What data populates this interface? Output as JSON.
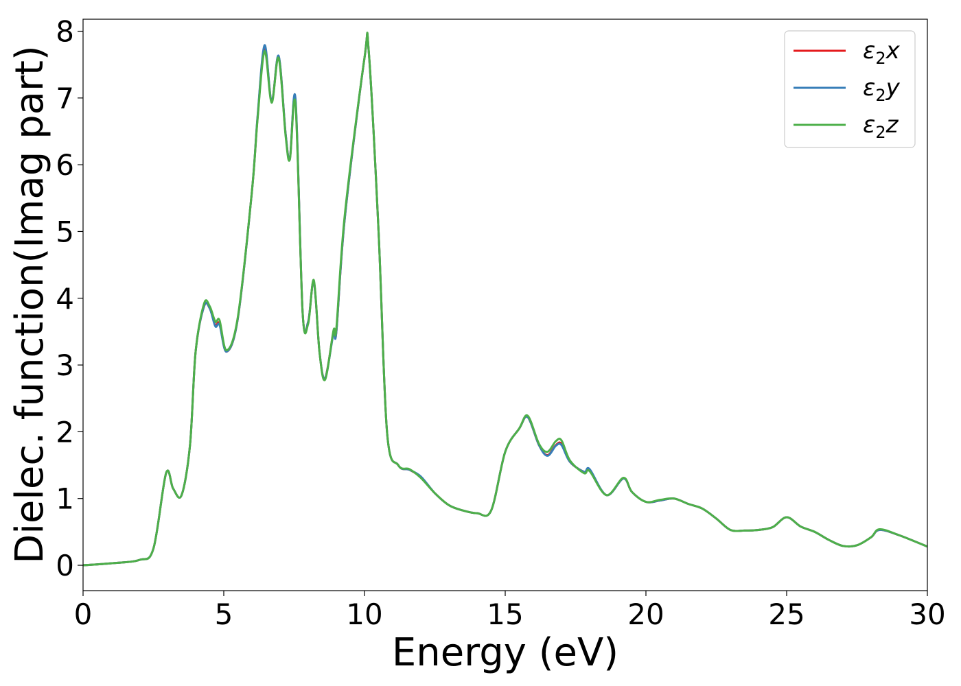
{
  "chart_data": {
    "type": "line",
    "xlabel": "Energy (eV)",
    "ylabel": "Dielec. function(Imag part)",
    "xlim": [
      0,
      30
    ],
    "ylim": [
      -0.38,
      8.18
    ],
    "xticks": [
      0,
      5,
      10,
      15,
      20,
      25,
      30
    ],
    "xtick_labels": [
      "0",
      "5",
      "10",
      "15",
      "20",
      "25",
      "30"
    ],
    "yticks": [
      0,
      1,
      2,
      3,
      4,
      5,
      6,
      7,
      8
    ],
    "ytick_labels": [
      "0",
      "1",
      "2",
      "3",
      "4",
      "5",
      "6",
      "7",
      "8"
    ],
    "grid": false,
    "legend_position": "top-right",
    "series": [
      {
        "name": "ε2x",
        "legend_base": "ε",
        "legend_sub": "2",
        "legend_suffix": "x",
        "color": "#e41a1c",
        "x": [
          0,
          1,
          2,
          2.5,
          2.95,
          3.2,
          3.5,
          3.8,
          4.0,
          4.3,
          4.5,
          4.7,
          4.85,
          5.1,
          5.5,
          6.0,
          6.2,
          6.45,
          6.7,
          6.95,
          7.2,
          7.35,
          7.55,
          7.8,
          8.0,
          8.2,
          8.4,
          8.6,
          8.9,
          9.0,
          9.3,
          10.0,
          10.15,
          10.5,
          10.8,
          11.2,
          11.6,
          12.0,
          12.5,
          13.0,
          13.5,
          14.0,
          14.5,
          15.0,
          15.5,
          15.8,
          16.2,
          16.5,
          16.8,
          17.0,
          17.3,
          17.8,
          18.0,
          18.6,
          19.2,
          19.5,
          20.0,
          20.5,
          21.0,
          21.5,
          22.0,
          22.5,
          23.0,
          23.5,
          24.0,
          24.5,
          25.0,
          25.5,
          26.0,
          26.5,
          27.0,
          27.5,
          28.0,
          28.3,
          29.0,
          30.0
        ],
        "values": [
          0.0,
          0.03,
          0.08,
          0.25,
          1.38,
          1.15,
          1.05,
          1.8,
          3.2,
          3.88,
          3.85,
          3.6,
          3.62,
          3.2,
          3.7,
          5.6,
          6.7,
          7.76,
          6.95,
          7.62,
          6.45,
          6.1,
          6.95,
          3.8,
          3.65,
          4.25,
          3.2,
          2.8,
          3.5,
          3.5,
          5.2,
          7.6,
          7.7,
          5.0,
          2.0,
          1.5,
          1.43,
          1.32,
          1.08,
          0.9,
          0.82,
          0.78,
          0.82,
          1.7,
          2.05,
          2.22,
          1.8,
          1.65,
          1.8,
          1.82,
          1.55,
          1.4,
          1.43,
          1.05,
          1.3,
          1.1,
          0.95,
          0.97,
          1.0,
          0.92,
          0.85,
          0.7,
          0.53,
          0.52,
          0.53,
          0.57,
          0.72,
          0.58,
          0.5,
          0.38,
          0.29,
          0.3,
          0.42,
          0.53,
          0.45,
          0.28
        ]
      },
      {
        "name": "ε2y",
        "legend_base": "ε",
        "legend_sub": "2",
        "legend_suffix": "y",
        "color": "#377eb8",
        "x": [
          0,
          1,
          2,
          2.5,
          2.95,
          3.2,
          3.5,
          3.8,
          4.0,
          4.3,
          4.5,
          4.7,
          4.85,
          5.1,
          5.5,
          6.0,
          6.2,
          6.45,
          6.7,
          6.95,
          7.2,
          7.35,
          7.55,
          7.8,
          8.0,
          8.2,
          8.4,
          8.6,
          8.9,
          9.0,
          9.3,
          10.0,
          10.15,
          10.5,
          10.8,
          11.2,
          11.6,
          12.0,
          12.5,
          13.0,
          13.5,
          14.0,
          14.5,
          15.0,
          15.5,
          15.8,
          16.2,
          16.5,
          16.8,
          17.0,
          17.3,
          17.8,
          18.0,
          18.6,
          19.2,
          19.5,
          20.0,
          20.5,
          21.0,
          21.5,
          22.0,
          22.5,
          23.0,
          23.5,
          24.0,
          24.5,
          25.0,
          25.5,
          26.0,
          26.5,
          27.0,
          27.5,
          28.0,
          28.3,
          29.0,
          30.0
        ],
        "values": [
          0.0,
          0.03,
          0.08,
          0.25,
          1.38,
          1.15,
          1.05,
          1.8,
          3.2,
          3.88,
          3.85,
          3.58,
          3.6,
          3.2,
          3.7,
          5.6,
          6.72,
          7.79,
          6.95,
          7.63,
          6.45,
          6.1,
          6.98,
          3.8,
          3.65,
          4.25,
          3.2,
          2.8,
          3.48,
          3.5,
          5.2,
          7.6,
          7.7,
          5.0,
          2.0,
          1.5,
          1.43,
          1.33,
          1.08,
          0.9,
          0.82,
          0.78,
          0.82,
          1.7,
          2.05,
          2.22,
          1.8,
          1.64,
          1.79,
          1.8,
          1.55,
          1.4,
          1.44,
          1.05,
          1.3,
          1.1,
          0.95,
          0.97,
          1.0,
          0.92,
          0.85,
          0.7,
          0.53,
          0.52,
          0.53,
          0.57,
          0.72,
          0.58,
          0.5,
          0.38,
          0.29,
          0.3,
          0.42,
          0.53,
          0.45,
          0.28
        ]
      },
      {
        "name": "ε2z",
        "legend_base": "ε",
        "legend_sub": "2",
        "legend_suffix": "z",
        "color": "#4daf4a",
        "x": [
          0,
          1,
          2,
          2.5,
          2.95,
          3.2,
          3.5,
          3.8,
          4.0,
          4.3,
          4.5,
          4.7,
          4.85,
          5.1,
          5.5,
          6.0,
          6.2,
          6.45,
          6.7,
          6.95,
          7.2,
          7.35,
          7.55,
          7.8,
          8.0,
          8.2,
          8.4,
          8.6,
          8.9,
          9.0,
          9.3,
          10.0,
          10.15,
          10.5,
          10.8,
          11.2,
          11.6,
          12.0,
          12.5,
          13.0,
          13.5,
          14.0,
          14.5,
          15.0,
          15.5,
          15.8,
          16.2,
          16.5,
          16.8,
          17.0,
          17.3,
          17.8,
          18.0,
          18.6,
          19.2,
          19.5,
          20.0,
          20.5,
          21.0,
          21.5,
          22.0,
          22.5,
          23.0,
          23.5,
          24.0,
          24.5,
          25.0,
          25.5,
          26.0,
          26.5,
          27.0,
          27.5,
          28.0,
          28.3,
          29.0,
          30.0
        ],
        "values": [
          0.0,
          0.03,
          0.08,
          0.25,
          1.38,
          1.15,
          1.05,
          1.8,
          3.2,
          3.92,
          3.88,
          3.65,
          3.67,
          3.22,
          3.72,
          5.6,
          6.68,
          7.7,
          6.93,
          7.6,
          6.42,
          6.08,
          6.9,
          3.8,
          3.62,
          4.27,
          3.2,
          2.78,
          3.52,
          3.55,
          5.25,
          7.6,
          7.71,
          5.0,
          2.0,
          1.5,
          1.44,
          1.31,
          1.08,
          0.9,
          0.82,
          0.78,
          0.82,
          1.7,
          2.05,
          2.24,
          1.82,
          1.7,
          1.86,
          1.87,
          1.57,
          1.38,
          1.41,
          1.05,
          1.31,
          1.1,
          0.95,
          0.98,
          1.0,
          0.92,
          0.85,
          0.7,
          0.53,
          0.52,
          0.53,
          0.57,
          0.72,
          0.58,
          0.5,
          0.38,
          0.29,
          0.3,
          0.42,
          0.54,
          0.45,
          0.28
        ]
      }
    ]
  }
}
